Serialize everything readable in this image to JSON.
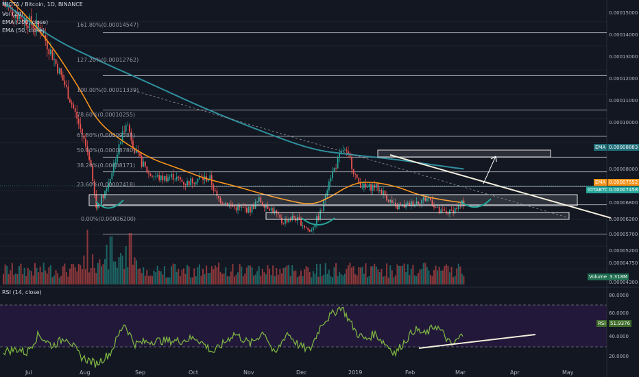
{
  "header": {
    "symbol_line": "MIOTA / Bitcoin, 1D, BINANCE",
    "indicators": [
      "Vol (20)",
      "EMA (200, close)",
      "EMA (50, close)"
    ]
  },
  "rsi_header": "RSI (14, close)",
  "price_axis": [
    "0.00015000",
    "0.00014000",
    "0.00013000",
    "0.00012000",
    "0.00011000",
    "0.00010000",
    "0.00008883",
    "0.00008000",
    "0.00007552",
    "0.00007458",
    "0.00006800",
    "0.00006200",
    "0.00005700",
    "0.00005200",
    "0.00004750",
    "0.00004300"
  ],
  "rsi_axis": [
    "80.0000",
    "60.0000",
    "40.0000",
    "20.0000"
  ],
  "months": [
    "Jul",
    "Aug",
    "Sep",
    "Oct",
    "Nov",
    "Dec",
    "2019",
    "Feb",
    "Mar",
    "Apr",
    "May"
  ],
  "fib_levels": [
    "161.80%(0.00014547)",
    "127.20%(0.00012762)",
    "100.00%(0.00011339)",
    "78.60%(0.00010255)",
    "61.80%(0.00009388)",
    "50.00%(0.00008780)",
    "38.20%(0.00008171)",
    "23.60%(0.00007418)",
    "0.00%(0.00006200)"
  ],
  "badges": {
    "ema200": {
      "label": "EMA",
      "value": "0.00008883"
    },
    "ema50": {
      "label": "EMA",
      "value": "0.00007552"
    },
    "last": {
      "label": "IOTABTC",
      "value": "0.00007458"
    },
    "volume": {
      "label": "Volume",
      "value": "3.318M"
    },
    "rsi": {
      "label": "RSI",
      "value": "51.9376"
    }
  },
  "colors": {
    "background": "#131722",
    "ema200": "#2f8f9d",
    "ema50": "#f7931a",
    "up": "#26a69a",
    "down": "#ef5350",
    "rsi_line": "#7cb342",
    "rsi_band": "#2a1a44",
    "trend": "#f3eedc"
  },
  "chart_data": {
    "type": "candlestick",
    "x_range": [
      "2018-06-22",
      "2019-05-10"
    ],
    "price_range": [
      4e-05,
      0.000159
    ],
    "rsi_range": [
      15,
      87
    ],
    "price_anchors": [
      [
        "06-22",
        0.000157
      ],
      [
        "07-06",
        0.00015
      ],
      [
        "07-13",
        0.000147
      ],
      [
        "07-20",
        0.000136
      ],
      [
        "07-27",
        0.000124
      ],
      [
        "08-03",
        0.00011
      ],
      [
        "08-10",
        9.4e-05
      ],
      [
        "08-14",
        7.3e-05
      ],
      [
        "08-20",
        8.1e-05
      ],
      [
        "08-27",
        9.8e-05
      ],
      [
        "08-31",
        0.000109
      ],
      [
        "09-06",
        9.5e-05
      ],
      [
        "09-13",
        8.7e-05
      ],
      [
        "09-20",
        8.5e-05
      ],
      [
        "09-27",
        8.6e-05
      ],
      [
        "10-04",
        8.3e-05
      ],
      [
        "10-11",
        8.5e-05
      ],
      [
        "10-18",
        8.5e-05
      ],
      [
        "10-22",
        7.7e-05
      ],
      [
        "11-01",
        7.3e-05
      ],
      [
        "11-10",
        7.2e-05
      ],
      [
        "11-15",
        7.6e-05
      ],
      [
        "11-23",
        7.2e-05
      ],
      [
        "11-28",
        6.7e-05
      ],
      [
        "12-05",
        6.9e-05
      ],
      [
        "12-10",
        6.6e-05
      ],
      [
        "12-14",
        6.3e-05
      ],
      [
        "12-21",
        7.2e-05
      ],
      [
        "12-25",
        8.5e-05
      ],
      [
        "12-28",
        8.9e-05
      ],
      [
        "01-02",
        9.7e-05
      ],
      [
        "01-06",
        9.3e-05
      ],
      [
        "01-10",
        8.4e-05
      ],
      [
        "01-15",
        8.1e-05
      ],
      [
        "01-20",
        8.2e-05
      ],
      [
        "01-25",
        7.9e-05
      ],
      [
        "02-01",
        7.3e-05
      ],
      [
        "02-08",
        7.4e-05
      ],
      [
        "02-15",
        7.6e-05
      ],
      [
        "02-20",
        7.7e-05
      ],
      [
        "02-26",
        7.1e-05
      ],
      [
        "03-04",
        7.1e-05
      ],
      [
        "03-12",
        7.5e-05
      ]
    ],
    "ema200_anchors": [
      [
        "06-22",
        0.000158
      ],
      [
        "07-20",
        0.000143
      ],
      [
        "08-15",
        0.000134
      ],
      [
        "09-15",
        0.000124
      ],
      [
        "10-15",
        0.000114
      ],
      [
        "11-15",
        0.000105
      ],
      [
        "12-15",
        9.7e-05
      ],
      [
        "01-05",
        9.5e-05
      ],
      [
        "02-01",
        9.3e-05
      ],
      [
        "03-01",
        9e-05
      ],
      [
        "03-12",
        8.9e-05
      ]
    ],
    "ema50_anchors": [
      [
        "06-22",
        0.000162
      ],
      [
        "07-15",
        0.000145
      ],
      [
        "08-05",
        0.000122
      ],
      [
        "08-15",
        0.000108
      ],
      [
        "09-01",
        9.9e-05
      ],
      [
        "09-15",
        9.3e-05
      ],
      [
        "10-01",
        8.9e-05
      ],
      [
        "10-15",
        8.5e-05
      ],
      [
        "11-01",
        8.2e-05
      ],
      [
        "11-15",
        7.9e-05
      ],
      [
        "12-01",
        7.6e-05
      ],
      [
        "12-15",
        7.4e-05
      ],
      [
        "12-25",
        7.7e-05
      ],
      [
        "01-05",
        8.2e-05
      ],
      [
        "01-15",
        8.4e-05
      ],
      [
        "02-01",
        8.2e-05
      ],
      [
        "02-15",
        7.8e-05
      ],
      [
        "03-01",
        7.6e-05
      ],
      [
        "03-12",
        7.5e-05
      ]
    ],
    "volume": {
      "description": "daily volume bars, peaks near Aug 14 and Aug 28",
      "last": "3.318M"
    },
    "rsi_anchors": [
      [
        "06-22",
        35
      ],
      [
        "07-01",
        37
      ],
      [
        "07-05",
        33
      ],
      [
        "07-12",
        51
      ],
      [
        "07-20",
        40
      ],
      [
        "07-28",
        49
      ],
      [
        "08-05",
        30
      ],
      [
        "08-14",
        23
      ],
      [
        "08-22",
        33
      ],
      [
        "08-30",
        62
      ],
      [
        "09-05",
        42
      ],
      [
        "09-15",
        45
      ],
      [
        "10-01",
        45
      ],
      [
        "10-10",
        48
      ],
      [
        "10-20",
        34
      ],
      [
        "11-01",
        52
      ],
      [
        "11-10",
        42
      ],
      [
        "11-18",
        54
      ],
      [
        "11-24",
        31
      ],
      [
        "12-01",
        53
      ],
      [
        "12-08",
        40
      ],
      [
        "12-14",
        36
      ],
      [
        "12-21",
        62
      ],
      [
        "12-28",
        72
      ],
      [
        "01-01",
        78
      ],
      [
        "01-05",
        66
      ],
      [
        "01-10",
        52
      ],
      [
        "01-15",
        46
      ],
      [
        "01-20",
        52
      ],
      [
        "02-01",
        33
      ],
      [
        "02-05",
        42
      ],
      [
        "02-12",
        56
      ],
      [
        "02-18",
        51
      ],
      [
        "02-24",
        60
      ],
      [
        "03-01",
        50
      ],
      [
        "03-05",
        40
      ],
      [
        "03-12",
        52
      ]
    ],
    "rsi_levels": [
      70,
      30
    ]
  }
}
